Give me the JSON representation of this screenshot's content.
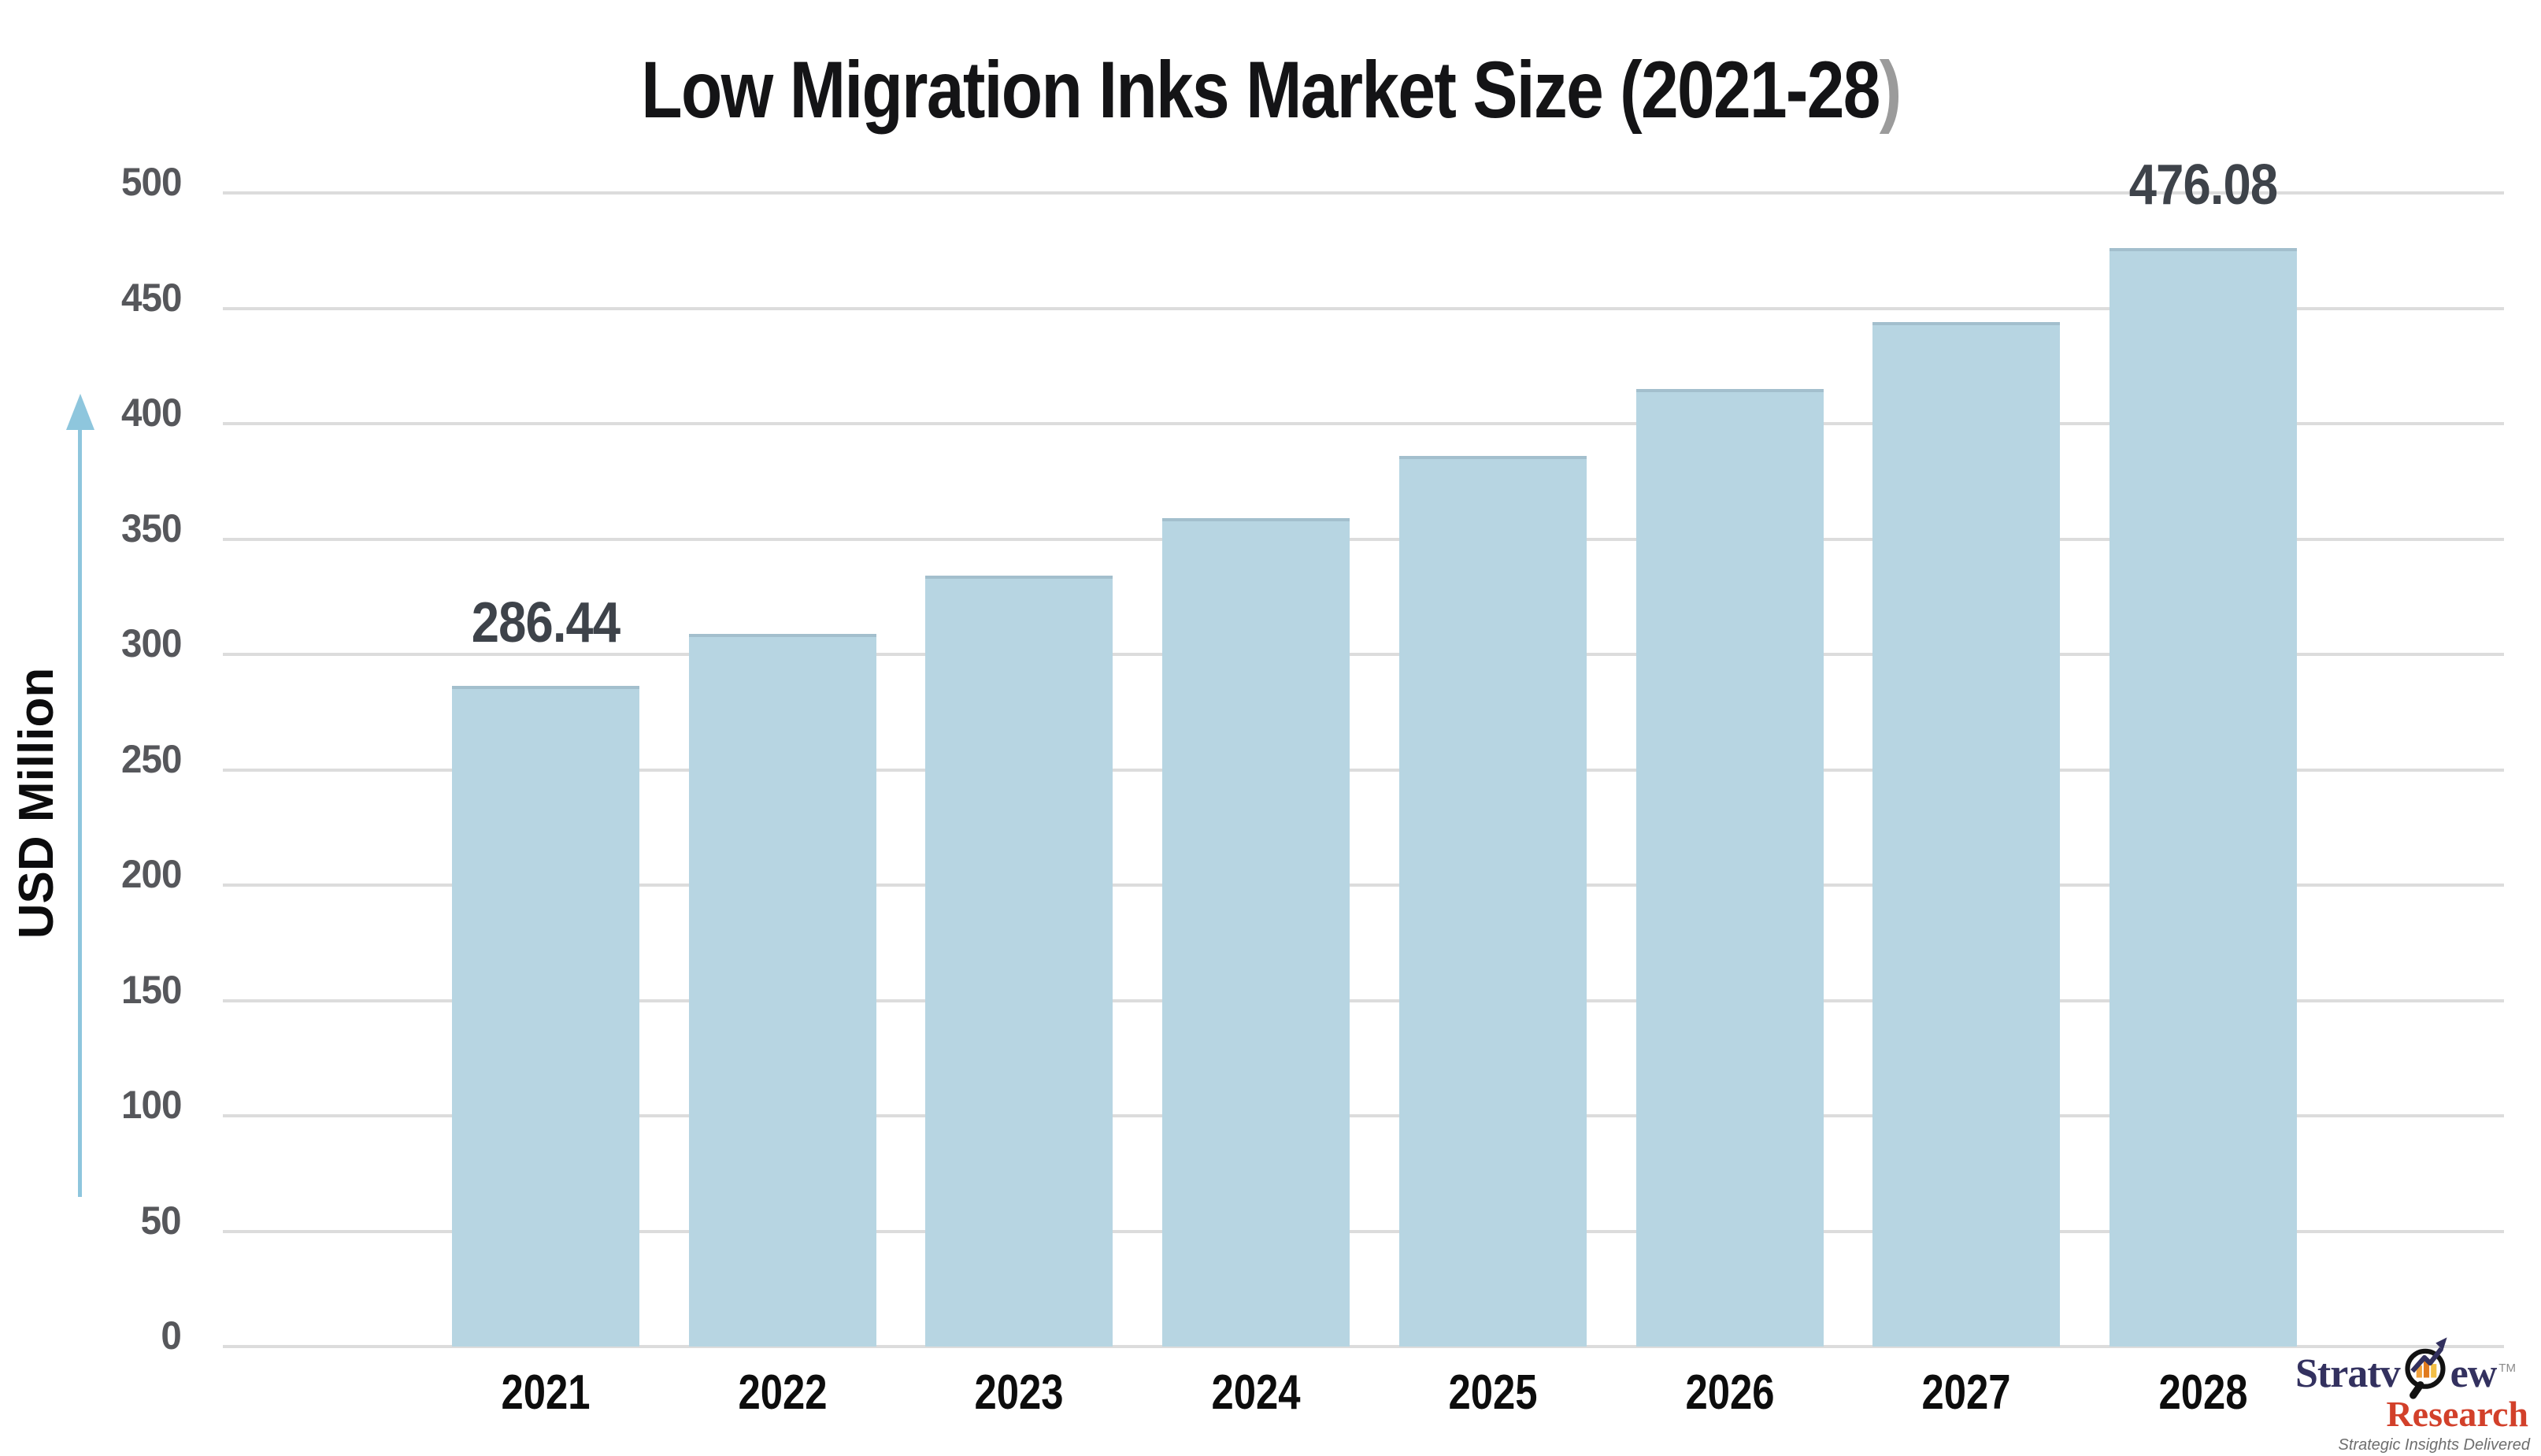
{
  "title": {
    "main": "Low Migration Inks Market Size (2021-28",
    "paren": ")"
  },
  "y_axis": {
    "label": "USD Million",
    "ticks": [
      "500",
      "450",
      "400",
      "350",
      "300",
      "250",
      "200",
      "150",
      "100",
      "50",
      "0"
    ]
  },
  "chart_data": {
    "type": "bar",
    "title": "Low Migration Inks Market Size (2021-28)",
    "categories": [
      "2021",
      "2022",
      "2023",
      "2024",
      "2025",
      "2026",
      "2027",
      "2028"
    ],
    "values": [
      286.44,
      309,
      334,
      359,
      386,
      415,
      444,
      476.08
    ],
    "data_labels": [
      {
        "index": 0,
        "text": "286.44"
      },
      {
        "index": 7,
        "text": "476.08"
      }
    ],
    "xlabel": "",
    "ylabel": "USD Million",
    "ylim": [
      0,
      500
    ],
    "y_tick_step": 50,
    "grid": true,
    "legend": false,
    "bar_color": "#b7d5e2"
  },
  "logo": {
    "brand": "Stratview",
    "brand_left": "Stratv",
    "brand_right": "ew",
    "trademark": "TM",
    "sub_brand": "Research",
    "tagline": "Strategic Insights Delivered"
  },
  "colors": {
    "background": "#ffffff",
    "bar": "#b7d5e2",
    "gridline": "#dcdcdc",
    "tick_label": "#56575b",
    "year_label": "#0d0d0d",
    "value_label": "#3e434a",
    "title_text": "#141416",
    "title_paren": "#9b9b9b",
    "axis_arrow": "#8ec6dd",
    "logo_navy": "#33315f",
    "logo_red": "#d2402a",
    "logo_gray": "#6e6e6e"
  }
}
